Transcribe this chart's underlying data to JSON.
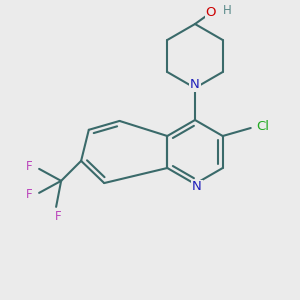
{
  "bg_color": "#ebebeb",
  "bond_color": "#3a6a6a",
  "bond_width": 1.5,
  "atom_colors": {
    "N": "#2020bb",
    "O": "#cc0000",
    "Cl": "#22aa22",
    "F": "#bb44bb",
    "H": "#5a8a8a"
  },
  "font_size": 9.5
}
